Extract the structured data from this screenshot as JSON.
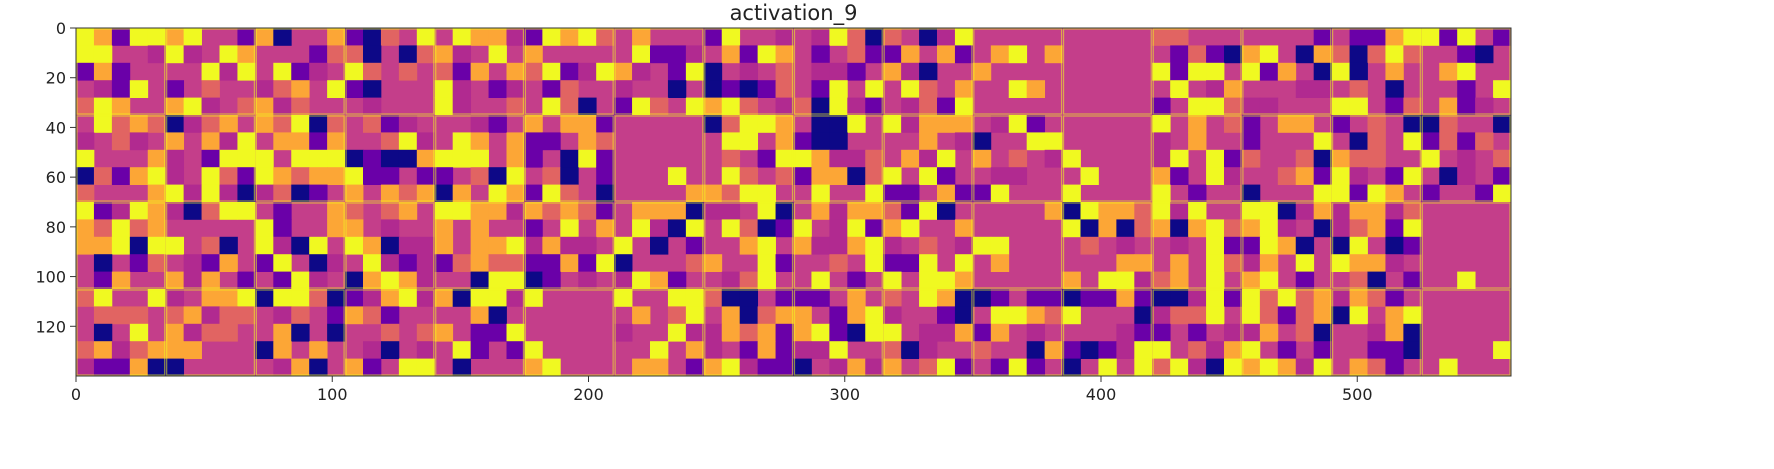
{
  "chart_data": {
    "type": "heatmap",
    "title": "activation_9",
    "xlabel": "",
    "ylabel": "",
    "xlim": [
      0,
      560
    ],
    "ylim": [
      140,
      0
    ],
    "grid": false,
    "colormap": "plasma",
    "colormap_colors": [
      "#0d0887",
      "#6a00a8",
      "#b12a90",
      "#e16462",
      "#fca636",
      "#f0f921"
    ],
    "tile_grid": {
      "rows": 4,
      "cols": 16,
      "tile_size": 35
    },
    "x_ticks": [
      0,
      100,
      200,
      300,
      400,
      500
    ],
    "x_tick_labels": [
      "0",
      "100",
      "200",
      "300",
      "400",
      "500"
    ],
    "y_ticks": [
      0,
      20,
      40,
      60,
      80,
      100,
      120
    ],
    "y_tick_labels": [
      "0",
      "20",
      "40",
      "60",
      "80",
      "100",
      "120"
    ]
  },
  "colors": {
    "background": "#ffffff",
    "axes_edge": "#333333",
    "tile_border": "#f0f921",
    "base_magenta": "#c43e8a"
  }
}
